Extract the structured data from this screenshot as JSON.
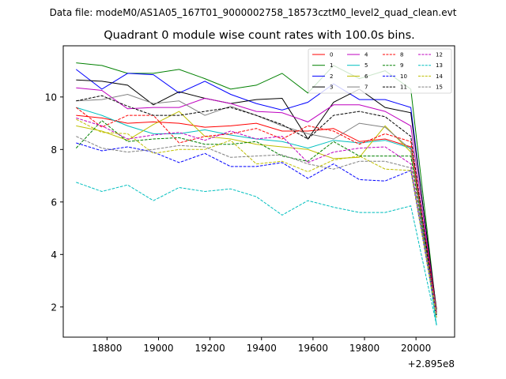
{
  "chart_data": {
    "type": "line",
    "suptitle": "Data file: modeM0/AS1A05_167T01_9000002758_18573cztM0_level2_quad_clean.evt",
    "title": "Quadrant 0 module wise count rates with 100.0s bins.",
    "xlabel": "",
    "ylabel": "",
    "x_offset_label": "+2.895e8",
    "xlim": [
      18630,
      20150
    ],
    "ylim": [
      0.85,
      11.95
    ],
    "x_ticks": [
      18800,
      19000,
      19200,
      19400,
      19600,
      19800,
      20000
    ],
    "y_ticks": [
      2,
      4,
      6,
      8,
      10
    ],
    "x": [
      18680,
      18780,
      18880,
      18980,
      19080,
      19180,
      19280,
      19380,
      19480,
      19580,
      19680,
      19780,
      19880,
      19980,
      20080
    ],
    "series": [
      {
        "name": "0",
        "color": "#ff0000",
        "dash": "solid",
        "values": [
          9.3,
          9.2,
          9.0,
          9.05,
          9.0,
          8.85,
          8.9,
          9.0,
          8.7,
          8.7,
          8.8,
          8.3,
          8.4,
          8.1,
          1.9
        ]
      },
      {
        "name": "1",
        "color": "#008000",
        "dash": "solid",
        "values": [
          11.3,
          11.2,
          10.9,
          10.9,
          11.05,
          10.7,
          10.3,
          10.45,
          10.9,
          10.15,
          11.2,
          10.7,
          11.0,
          10.3,
          1.8
        ]
      },
      {
        "name": "2",
        "color": "#0000ff",
        "dash": "solid",
        "values": [
          11.05,
          10.3,
          10.9,
          10.85,
          10.15,
          10.6,
          10.1,
          9.75,
          9.5,
          9.8,
          10.5,
          9.9,
          9.9,
          9.6,
          1.7
        ]
      },
      {
        "name": "3",
        "color": "#000000",
        "dash": "solid",
        "values": [
          10.65,
          10.6,
          10.45,
          9.7,
          10.2,
          9.95,
          9.75,
          9.9,
          9.95,
          8.4,
          9.8,
          10.3,
          9.6,
          9.4,
          1.9
        ]
      },
      {
        "name": "4",
        "color": "#bf00bf",
        "dash": "solid",
        "values": [
          10.35,
          10.25,
          9.55,
          9.6,
          9.6,
          9.95,
          9.75,
          9.45,
          9.4,
          9.05,
          9.7,
          9.7,
          9.45,
          8.9,
          1.8
        ]
      },
      {
        "name": "5",
        "color": "#00bfbf",
        "dash": "solid",
        "values": [
          9.6,
          9.3,
          8.9,
          8.6,
          8.6,
          8.75,
          8.55,
          8.4,
          8.3,
          8.05,
          8.35,
          8.25,
          8.35,
          8.05,
          1.3
        ]
      },
      {
        "name": "6",
        "color": "#bfbf00",
        "dash": "solid",
        "values": [
          8.9,
          8.7,
          8.35,
          8.95,
          9.45,
          8.5,
          8.4,
          8.2,
          8.1,
          8.0,
          7.65,
          7.7,
          8.9,
          7.9,
          1.8
        ]
      },
      {
        "name": "7",
        "color": "#808080",
        "dash": "solid",
        "values": [
          9.85,
          9.9,
          10.1,
          9.75,
          9.85,
          9.3,
          9.65,
          9.3,
          8.9,
          8.6,
          8.4,
          9.0,
          8.85,
          8.0,
          1.8
        ]
      },
      {
        "name": "8",
        "color": "#ff0000",
        "dash": "dashed",
        "values": [
          9.6,
          8.85,
          9.3,
          9.3,
          8.25,
          8.5,
          8.6,
          8.8,
          8.4,
          8.9,
          8.7,
          8.2,
          8.6,
          8.3,
          1.8
        ]
      },
      {
        "name": "9",
        "color": "#008000",
        "dash": "dashed",
        "values": [
          8.05,
          9.1,
          8.3,
          8.4,
          8.45,
          8.2,
          8.2,
          8.3,
          7.75,
          7.55,
          8.3,
          7.75,
          7.75,
          7.75,
          1.7
        ]
      },
      {
        "name": "10",
        "color": "#0000ff",
        "dash": "dashed",
        "values": [
          8.25,
          7.95,
          8.1,
          7.9,
          7.5,
          7.85,
          7.35,
          7.35,
          7.5,
          6.9,
          7.45,
          6.85,
          6.8,
          7.2,
          1.6
        ]
      },
      {
        "name": "11",
        "color": "#000000",
        "dash": "dashed",
        "values": [
          9.85,
          10.05,
          9.65,
          9.3,
          9.3,
          9.45,
          9.6,
          9.3,
          8.95,
          8.4,
          9.3,
          9.45,
          9.25,
          8.5,
          1.6
        ]
      },
      {
        "name": "12",
        "color": "#bf00bf",
        "dash": "dashed",
        "values": [
          9.2,
          8.9,
          8.4,
          8.55,
          8.65,
          8.35,
          8.7,
          8.4,
          8.5,
          7.5,
          7.9,
          8.05,
          8.1,
          7.45,
          1.7
        ]
      },
      {
        "name": "13",
        "color": "#00bfbf",
        "dash": "dashed",
        "values": [
          6.75,
          6.4,
          6.65,
          6.05,
          6.55,
          6.4,
          6.5,
          6.2,
          5.5,
          6.05,
          5.8,
          5.6,
          5.6,
          5.85,
          1.3
        ]
      },
      {
        "name": "14",
        "color": "#bfbf00",
        "dash": "dashed",
        "values": [
          9.15,
          8.65,
          8.6,
          7.85,
          8.0,
          8.0,
          8.35,
          7.45,
          7.55,
          7.15,
          7.6,
          7.75,
          7.25,
          7.2,
          1.6
        ]
      },
      {
        "name": "15",
        "color": "#808080",
        "dash": "dashed",
        "values": [
          8.5,
          8.05,
          7.9,
          8.0,
          8.15,
          8.1,
          7.7,
          7.75,
          7.8,
          7.45,
          7.25,
          7.55,
          7.55,
          7.3,
          1.8
        ]
      }
    ],
    "legend": {
      "location": "upper-right",
      "columns": 4
    }
  }
}
